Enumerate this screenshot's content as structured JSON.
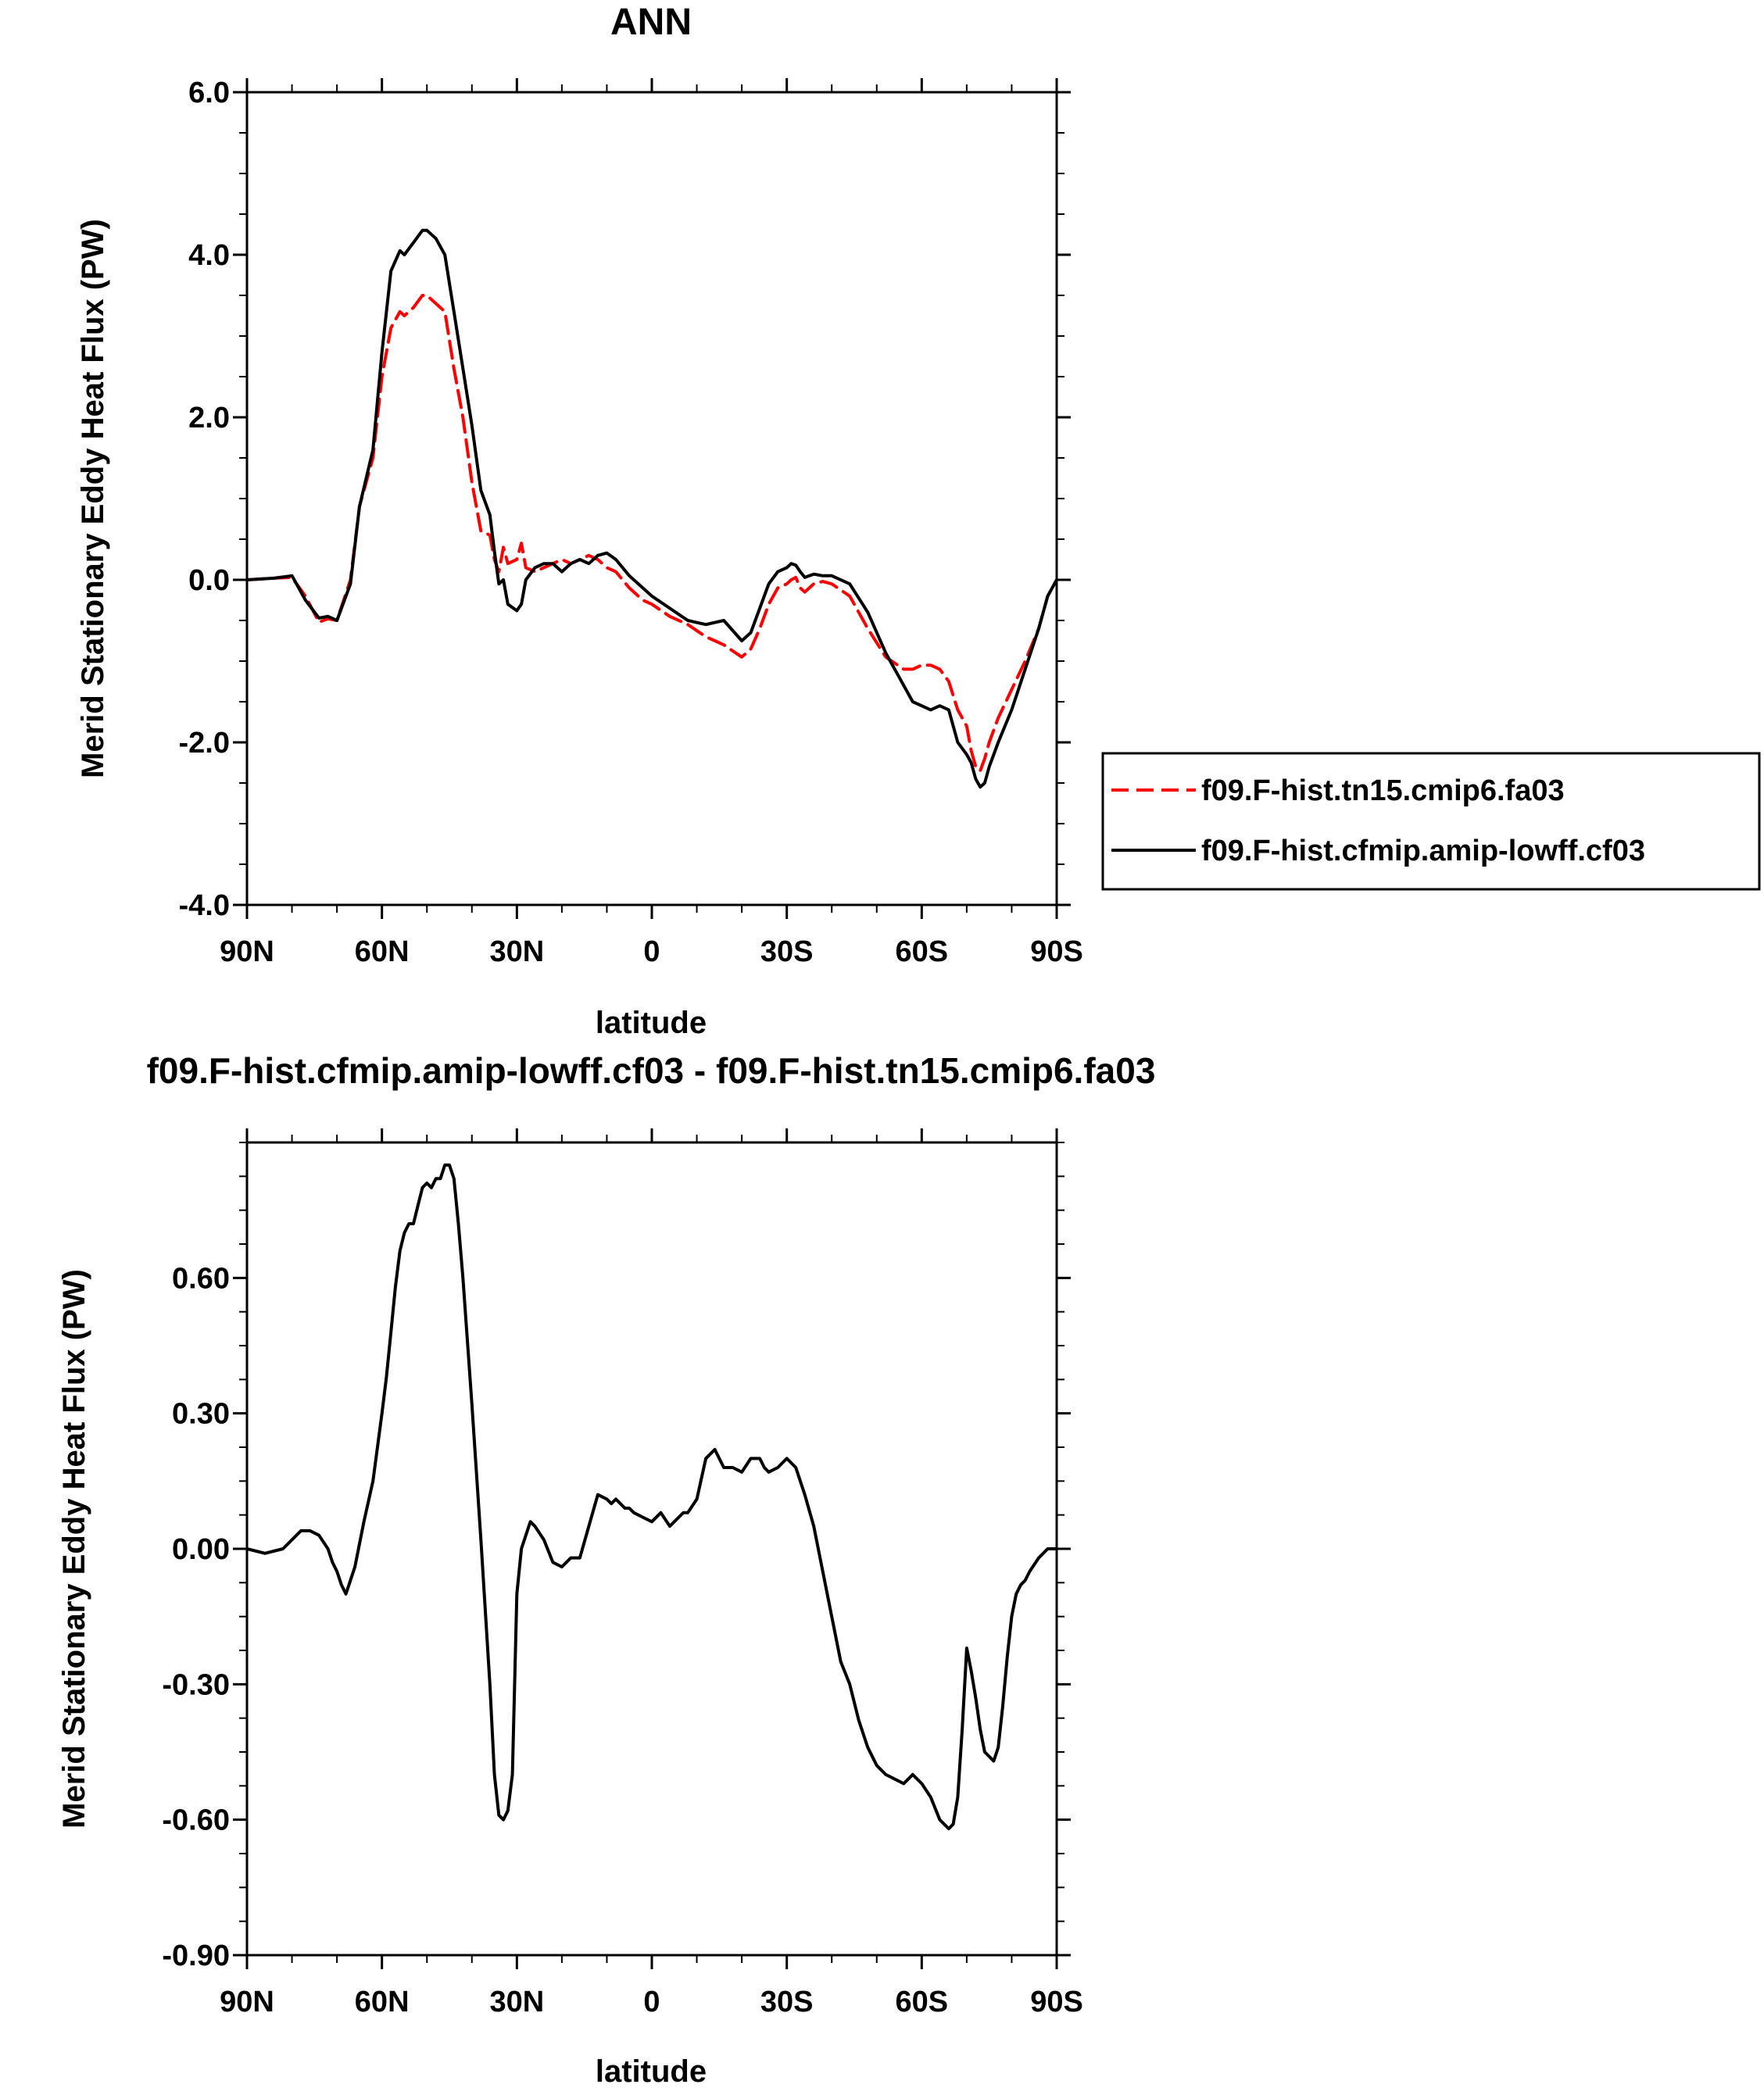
{
  "chart_data": [
    {
      "type": "line",
      "title": "ANN",
      "xlabel": "latitude",
      "ylabel": "Merid Stationary Eddy Heat Flux (PW)",
      "xlim": [
        90,
        -90
      ],
      "ylim": [
        -4.0,
        6.0
      ],
      "x_ticks": [
        90,
        60,
        30,
        0,
        -30,
        -60,
        -90
      ],
      "x_tick_labels": [
        "90N",
        "60N",
        "30N",
        "0",
        "30S",
        "60S",
        "90S"
      ],
      "y_ticks": [
        -4.0,
        -2.0,
        0.0,
        2.0,
        4.0,
        6.0
      ],
      "y_tick_labels": [
        "-4.0",
        "-2.0",
        "0.0",
        "2.0",
        "4.0",
        "6.0"
      ],
      "legend_position": "right-outside",
      "series": [
        {
          "name": "f09.F-hist.tn15.cmip6.fa03",
          "color": "#ff0000",
          "dash": "dashed",
          "x": [
            90,
            84,
            80,
            77,
            74,
            72,
            70,
            67,
            65,
            62,
            60,
            58,
            56,
            55,
            53,
            51,
            50,
            48,
            46,
            44,
            42,
            40,
            38,
            36,
            35,
            34,
            33,
            32,
            30,
            29,
            28,
            26,
            24,
            22,
            20,
            18,
            16,
            14,
            12,
            10,
            8,
            5,
            2,
            0,
            -4,
            -8,
            -12,
            -16,
            -20,
            -22,
            -24,
            -26,
            -28,
            -30,
            -31,
            -32,
            -33,
            -34,
            -36,
            -38,
            -40,
            -44,
            -48,
            -52,
            -56,
            -58,
            -60,
            -62,
            -64,
            -66,
            -68,
            -70,
            -71,
            -72,
            -73,
            -74,
            -75,
            -77,
            -80,
            -83,
            -86,
            -88,
            -90
          ],
          "y": [
            0.0,
            0.02,
            0.03,
            -0.2,
            -0.52,
            -0.48,
            -0.5,
            0.0,
            0.9,
            1.5,
            2.5,
            3.1,
            3.3,
            3.25,
            3.35,
            3.5,
            3.5,
            3.4,
            3.3,
            2.6,
            2.0,
            1.2,
            0.6,
            0.55,
            0.25,
            0.1,
            0.4,
            0.2,
            0.25,
            0.45,
            0.15,
            0.1,
            0.15,
            0.2,
            0.25,
            0.2,
            0.25,
            0.3,
            0.25,
            0.15,
            0.1,
            -0.1,
            -0.25,
            -0.3,
            -0.45,
            -0.55,
            -0.7,
            -0.8,
            -0.95,
            -0.85,
            -0.6,
            -0.3,
            -0.1,
            -0.05,
            0.0,
            0.03,
            -0.1,
            -0.15,
            -0.05,
            -0.02,
            -0.05,
            -0.2,
            -0.6,
            -0.95,
            -1.1,
            -1.1,
            -1.05,
            -1.05,
            -1.1,
            -1.25,
            -1.6,
            -1.8,
            -2.1,
            -2.3,
            -2.35,
            -2.2,
            -2.0,
            -1.7,
            -1.35,
            -1.0,
            -0.6,
            -0.2,
            0.0
          ]
        },
        {
          "name": "f09.F-hist.cfmip.amip-lowff.cf03",
          "color": "#000000",
          "dash": "solid",
          "x": [
            90,
            84,
            80,
            77,
            74,
            72,
            70,
            67,
            65,
            62,
            60,
            58,
            56,
            55,
            53,
            51,
            50,
            48,
            46,
            44,
            42,
            40,
            38,
            36,
            35,
            34,
            33,
            32,
            30,
            29,
            28,
            26,
            24,
            22,
            20,
            18,
            16,
            14,
            12,
            10,
            8,
            5,
            2,
            0,
            -4,
            -8,
            -12,
            -16,
            -20,
            -22,
            -24,
            -26,
            -28,
            -30,
            -31,
            -32,
            -33,
            -34,
            -36,
            -38,
            -40,
            -44,
            -48,
            -52,
            -56,
            -58,
            -60,
            -62,
            -64,
            -66,
            -68,
            -70,
            -71,
            -72,
            -73,
            -74,
            -75,
            -77,
            -80,
            -83,
            -86,
            -88,
            -90
          ],
          "y": [
            0.0,
            0.02,
            0.05,
            -0.25,
            -0.47,
            -0.45,
            -0.5,
            -0.05,
            0.9,
            1.6,
            2.8,
            3.8,
            4.05,
            4.0,
            4.15,
            4.3,
            4.3,
            4.2,
            4.0,
            3.3,
            2.6,
            1.9,
            1.1,
            0.8,
            0.35,
            -0.05,
            0.0,
            -0.3,
            -0.38,
            -0.3,
            0.0,
            0.15,
            0.2,
            0.2,
            0.1,
            0.2,
            0.25,
            0.2,
            0.3,
            0.33,
            0.25,
            0.05,
            -0.1,
            -0.2,
            -0.35,
            -0.5,
            -0.55,
            -0.5,
            -0.75,
            -0.65,
            -0.35,
            -0.05,
            0.1,
            0.15,
            0.2,
            0.18,
            0.1,
            0.03,
            0.07,
            0.05,
            0.05,
            -0.05,
            -0.4,
            -0.9,
            -1.3,
            -1.5,
            -1.55,
            -1.6,
            -1.55,
            -1.6,
            -2.0,
            -2.15,
            -2.25,
            -2.45,
            -2.55,
            -2.5,
            -2.3,
            -2.0,
            -1.6,
            -1.1,
            -0.6,
            -0.2,
            0.0
          ]
        }
      ]
    },
    {
      "type": "line",
      "title": "f09.F-hist.cfmip.amip-lowff.cf03 - f09.F-hist.tn15.cmip6.fa03",
      "xlabel": "latitude",
      "ylabel": "Merid Stationary Eddy Heat Flux (PW)",
      "xlim": [
        90,
        -90
      ],
      "ylim": [
        -0.9,
        0.9
      ],
      "x_ticks": [
        90,
        60,
        30,
        0,
        -30,
        -60,
        -90
      ],
      "x_tick_labels": [
        "90N",
        "60N",
        "30N",
        "0",
        "30S",
        "60S",
        "90S"
      ],
      "y_ticks": [
        -0.9,
        -0.6,
        -0.3,
        0.0,
        0.3,
        0.6
      ],
      "y_tick_labels": [
        "-0.90",
        "-0.60",
        "-0.30",
        "0.00",
        "0.30",
        "0.60"
      ],
      "series": [
        {
          "color": "#000000",
          "dash": "solid",
          "x": [
            90,
            86,
            82,
            80,
            78,
            76,
            74,
            72,
            71,
            70,
            69,
            68,
            66,
            64,
            62,
            60,
            59,
            58,
            57,
            56,
            55,
            54,
            53,
            52,
            51,
            50,
            49,
            48,
            47,
            46,
            45,
            44,
            43,
            42,
            40,
            38,
            36,
            35,
            34,
            33,
            32,
            31,
            30,
            29,
            28,
            27,
            26,
            24,
            22,
            20,
            19,
            18,
            16,
            14,
            12,
            10,
            9,
            8,
            6,
            5,
            4,
            2,
            0,
            -2,
            -4,
            -6,
            -7,
            -8,
            -10,
            -12,
            -14,
            -15,
            -16,
            -17,
            -18,
            -20,
            -22,
            -24,
            -25,
            -26,
            -28,
            -30,
            -32,
            -34,
            -36,
            -38,
            -40,
            -42,
            -44,
            -46,
            -48,
            -50,
            -52,
            -54,
            -56,
            -58,
            -60,
            -62,
            -64,
            -66,
            -67,
            -68,
            -69,
            -70,
            -71,
            -72,
            -73,
            -74,
            -75,
            -76,
            -77,
            -78,
            -79,
            -80,
            -81,
            -82,
            -83,
            -84,
            -86,
            -88,
            -90
          ],
          "y": [
            0.0,
            -0.01,
            0.0,
            0.02,
            0.04,
            0.04,
            0.03,
            0.0,
            -0.03,
            -0.05,
            -0.08,
            -0.1,
            -0.04,
            0.06,
            0.15,
            0.3,
            0.38,
            0.48,
            0.58,
            0.66,
            0.7,
            0.72,
            0.72,
            0.76,
            0.8,
            0.81,
            0.8,
            0.82,
            0.82,
            0.85,
            0.85,
            0.82,
            0.72,
            0.6,
            0.32,
            0.02,
            -0.3,
            -0.5,
            -0.59,
            -0.6,
            -0.58,
            -0.5,
            -0.1,
            0.0,
            0.03,
            0.06,
            0.05,
            0.02,
            -0.03,
            -0.04,
            -0.03,
            -0.02,
            -0.02,
            0.05,
            0.12,
            0.11,
            0.1,
            0.11,
            0.09,
            0.09,
            0.08,
            0.07,
            0.06,
            0.08,
            0.05,
            0.07,
            0.08,
            0.08,
            0.11,
            0.2,
            0.22,
            0.2,
            0.18,
            0.18,
            0.18,
            0.17,
            0.2,
            0.2,
            0.18,
            0.17,
            0.18,
            0.2,
            0.18,
            0.12,
            0.05,
            -0.05,
            -0.15,
            -0.25,
            -0.3,
            -0.38,
            -0.44,
            -0.48,
            -0.5,
            -0.51,
            -0.52,
            -0.5,
            -0.52,
            -0.55,
            -0.6,
            -0.62,
            -0.61,
            -0.55,
            -0.4,
            -0.22,
            -0.27,
            -0.33,
            -0.4,
            -0.45,
            -0.46,
            -0.47,
            -0.44,
            -0.35,
            -0.24,
            -0.15,
            -0.1,
            -0.08,
            -0.07,
            -0.05,
            -0.02,
            0.0,
            0.0
          ]
        }
      ]
    }
  ]
}
